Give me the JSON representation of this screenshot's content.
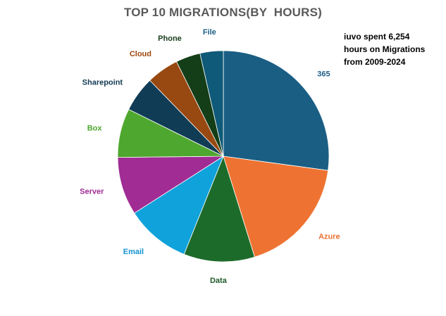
{
  "chart_data": {
    "type": "pie",
    "title": "TOP 10 MIGRATIONS(BY  HOURS)",
    "annotation": [
      "iuvo spent 6,254",
      "hours on Migrations",
      "from 2009-2024"
    ],
    "start_angle_deg": 0,
    "direction": "clockwise",
    "slices": [
      {
        "label": "365",
        "value": 27.5,
        "color": "#1a5e84",
        "label_color": "#1f5f8a"
      },
      {
        "label": "Azure",
        "value": 18.3,
        "color": "#ee7332",
        "label_color": "#e97132"
      },
      {
        "label": "Data",
        "value": 11.0,
        "color": "#1d6b2a",
        "label_color": "#1d5a26"
      },
      {
        "label": "Email",
        "value": 10.0,
        "color": "#10a2da",
        "label_color": "#1494cf"
      },
      {
        "label": "Server",
        "value": 9.0,
        "color": "#a02c94",
        "label_color": "#a02b93"
      },
      {
        "label": "Box",
        "value": 7.6,
        "color": "#4ea72e",
        "label_color": "#4ea72e"
      },
      {
        "label": "Sharepoint",
        "value": 5.5,
        "color": "#103c56",
        "label_color": "#133a52"
      },
      {
        "label": "Cloud",
        "value": 5.0,
        "color": "#984811",
        "label_color": "#a0470f"
      },
      {
        "label": "Phone",
        "value": 3.8,
        "color": "#143e17",
        "label_color": "#1a3e1a"
      },
      {
        "label": "File",
        "value": 3.6,
        "color": "#0f5a78",
        "label_color": "#1a5e84"
      }
    ]
  }
}
